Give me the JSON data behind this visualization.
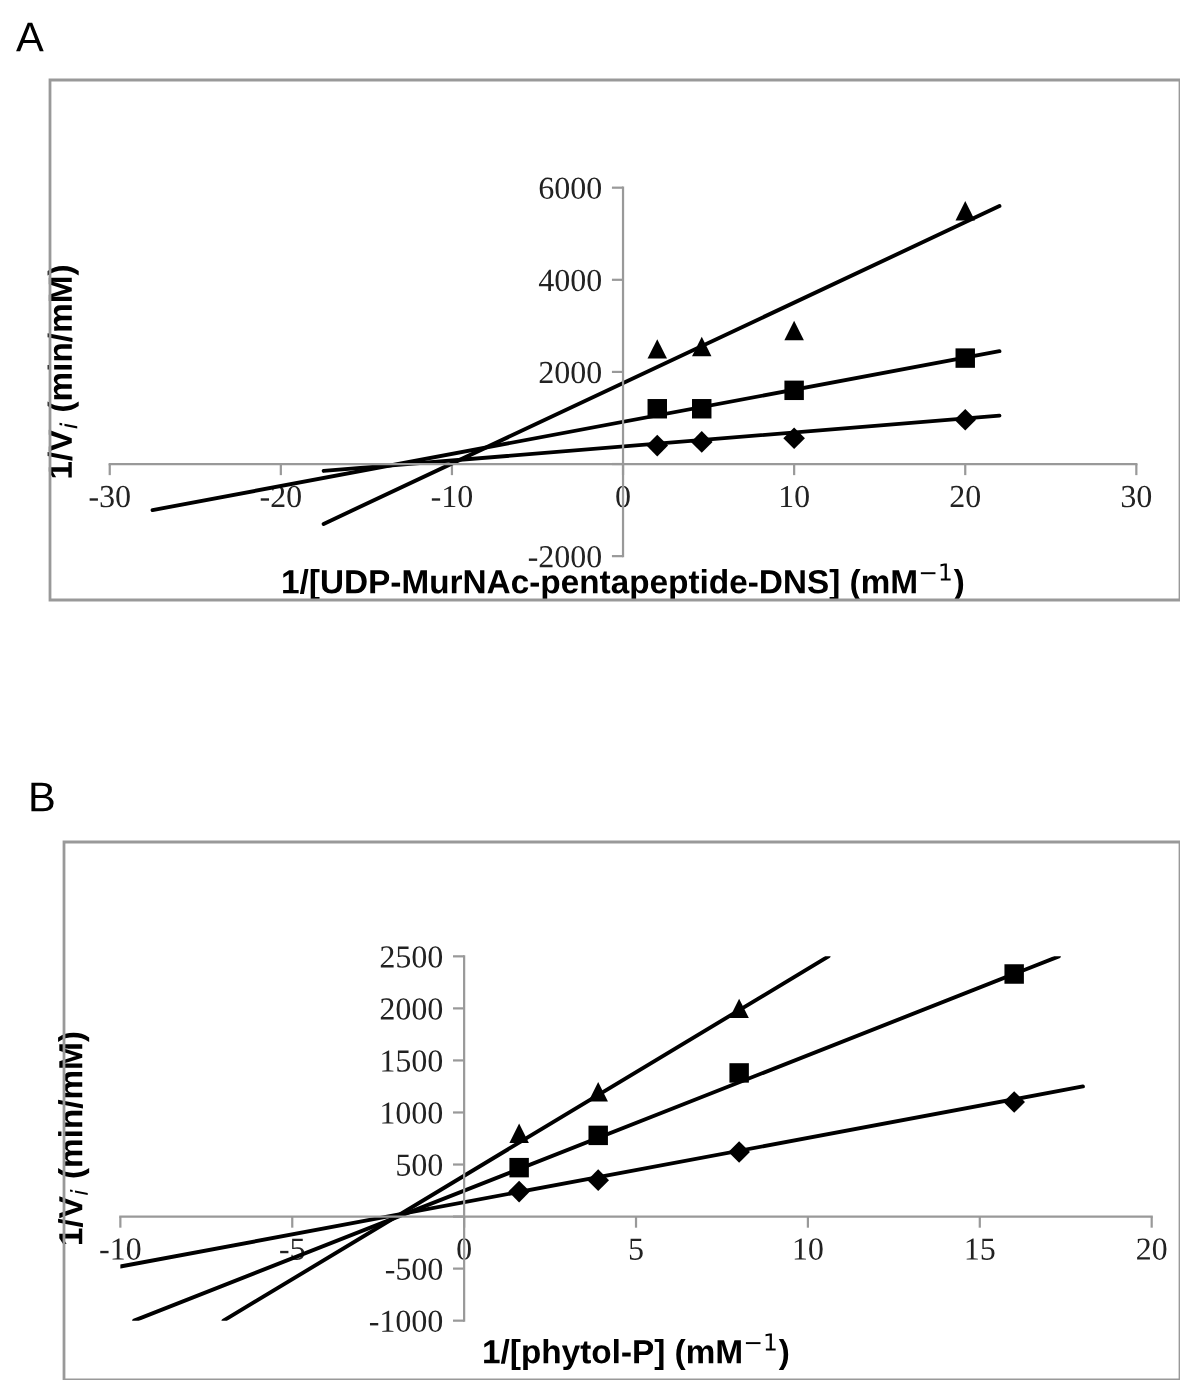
{
  "chart_data": [
    {
      "type": "scatter",
      "title": "A",
      "xlabel": "1/[UDP-MurNAc-pentapeptide-DNS] (mM$^{−1}$)",
      "ylabel": "1/V$_{i}$ (min/mM)",
      "xlim": [
        -30,
        30
      ],
      "xticks": [
        -30,
        -20,
        -10,
        0,
        10,
        20,
        30
      ],
      "ylim": [
        -2000,
        6000
      ],
      "yticks": [
        -2000,
        {
          "value": 0,
          "label": null
        },
        2000,
        4000,
        6000
      ],
      "grid": false,
      "series": [
        {
          "marker": "triangle",
          "color": "#000000",
          "x": [
            2,
            4.6,
            10,
            20
          ],
          "values": [
            2500,
            2550,
            2900,
            5500
          ]
        },
        {
          "marker": "square",
          "color": "#000000",
          "x": [
            2,
            4.6,
            10,
            20
          ],
          "values": [
            1200,
            1200,
            1600,
            2300
          ]
        },
        {
          "marker": "diamond",
          "color": "#000000",
          "x": [
            2,
            4.6,
            10,
            20
          ],
          "values": [
            400,
            480,
            560,
            960
          ]
        },
        {
          "type": "line",
          "marker": "none",
          "line_style": "solid",
          "color": "#000000",
          "x": [
            -17.5,
            22
          ],
          "values": [
            -1300,
            5600
          ]
        },
        {
          "type": "line",
          "marker": "none",
          "line_style": "solid",
          "color": "#000000",
          "x": [
            -27.5,
            22
          ],
          "values": [
            -1000,
            2450
          ]
        },
        {
          "type": "line",
          "marker": "none",
          "line_style": "solid",
          "color": "#000000",
          "x": [
            -17.5,
            22
          ],
          "values": [
            -150,
            1050
          ]
        }
      ]
    },
    {
      "type": "scatter",
      "title": "B",
      "xlabel": "1/[phytol-P] (mM$^{−1}$)",
      "ylabel": "1/V$_{i}$ (min/mM)",
      "xlim": [
        -10,
        20
      ],
      "xticks": [
        -10,
        -5,
        0,
        5,
        10,
        15,
        20
      ],
      "ylim": [
        -1000,
        2500
      ],
      "yticks": [
        -1000,
        -500,
        {
          "value": 0,
          "label": null
        },
        500,
        1000,
        1500,
        2000,
        2500
      ],
      "grid": false,
      "series": [
        {
          "marker": "triangle",
          "color": "#000000",
          "x": [
            1.6,
            3.9,
            8
          ],
          "values": [
            800,
            1200,
            2000
          ]
        },
        {
          "marker": "square",
          "color": "#000000",
          "x": [
            1.6,
            3.9,
            8,
            16
          ],
          "values": [
            470,
            780,
            1380,
            2330
          ]
        },
        {
          "marker": "diamond",
          "color": "#000000",
          "x": [
            1.6,
            3.9,
            8,
            16
          ],
          "values": [
            240,
            350,
            620,
            1100
          ]
        },
        {
          "type": "line",
          "marker": "none",
          "line_style": "solid",
          "color": "#000000",
          "x": [
            -7,
            10.6
          ],
          "values": [
            -1000,
            2500
          ]
        },
        {
          "type": "line",
          "marker": "none",
          "line_style": "solid",
          "color": "#000000",
          "x": [
            -9.6,
            17.3
          ],
          "values": [
            -1000,
            2500
          ]
        },
        {
          "type": "line",
          "marker": "none",
          "line_style": "solid",
          "color": "#000000",
          "x": [
            -10,
            18
          ],
          "values": [
            -480,
            1250
          ]
        }
      ]
    }
  ]
}
